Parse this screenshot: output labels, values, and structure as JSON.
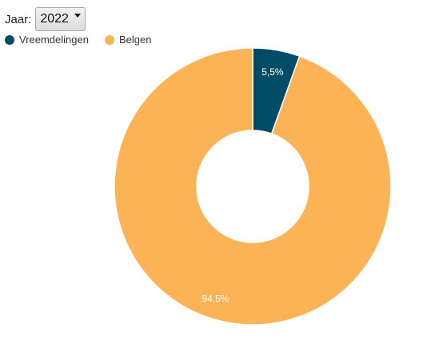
{
  "filter": {
    "label": "Jaar:",
    "selected": "2022"
  },
  "chart_data": {
    "type": "pie",
    "donut": true,
    "unit": "%",
    "slices": [
      {
        "name": "Vreemdelingen",
        "value": 5.5,
        "label": "5,5%",
        "color": "#004c66"
      },
      {
        "name": "Belgen",
        "value": 94.5,
        "label": "94,5%",
        "color": "#fbb356"
      }
    ],
    "legend_position": "top-left"
  }
}
